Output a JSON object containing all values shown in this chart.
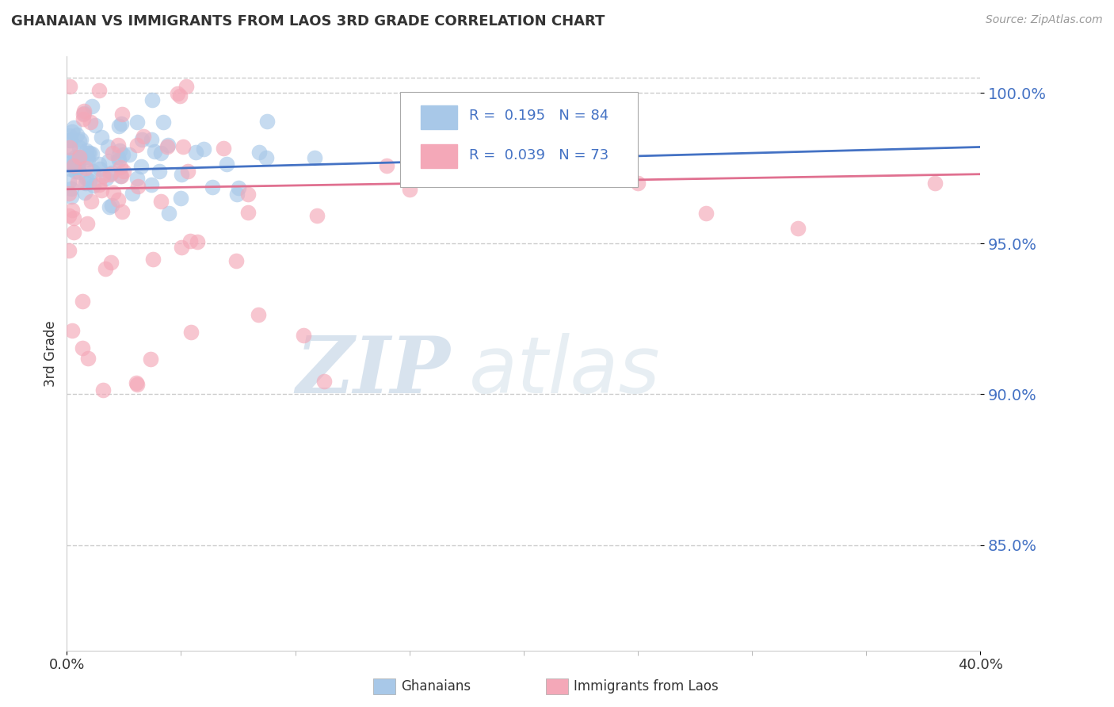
{
  "title": "GHANAIAN VS IMMIGRANTS FROM LAOS 3RD GRADE CORRELATION CHART",
  "source": "Source: ZipAtlas.com",
  "ylabel": "3rd Grade",
  "xlim": [
    0.0,
    0.4
  ],
  "ylim": [
    0.815,
    1.012
  ],
  "blue_R": 0.195,
  "blue_N": 84,
  "pink_R": 0.039,
  "pink_N": 73,
  "blue_color": "#a8c8e8",
  "pink_color": "#f4a8b8",
  "blue_line_color": "#4472c4",
  "pink_line_color": "#e07090",
  "legend_label_blue": "Ghanaians",
  "legend_label_pink": "Immigrants from Laos",
  "watermark_zip": "ZIP",
  "watermark_atlas": "atlas",
  "ytick_vals": [
    0.85,
    0.9,
    0.95,
    1.0
  ],
  "ytick_labels": [
    "85.0%",
    "90.0%",
    "95.0%",
    "100.0%"
  ],
  "top_gridline_y": 1.005,
  "blue_seed": 42,
  "pink_seed": 99
}
